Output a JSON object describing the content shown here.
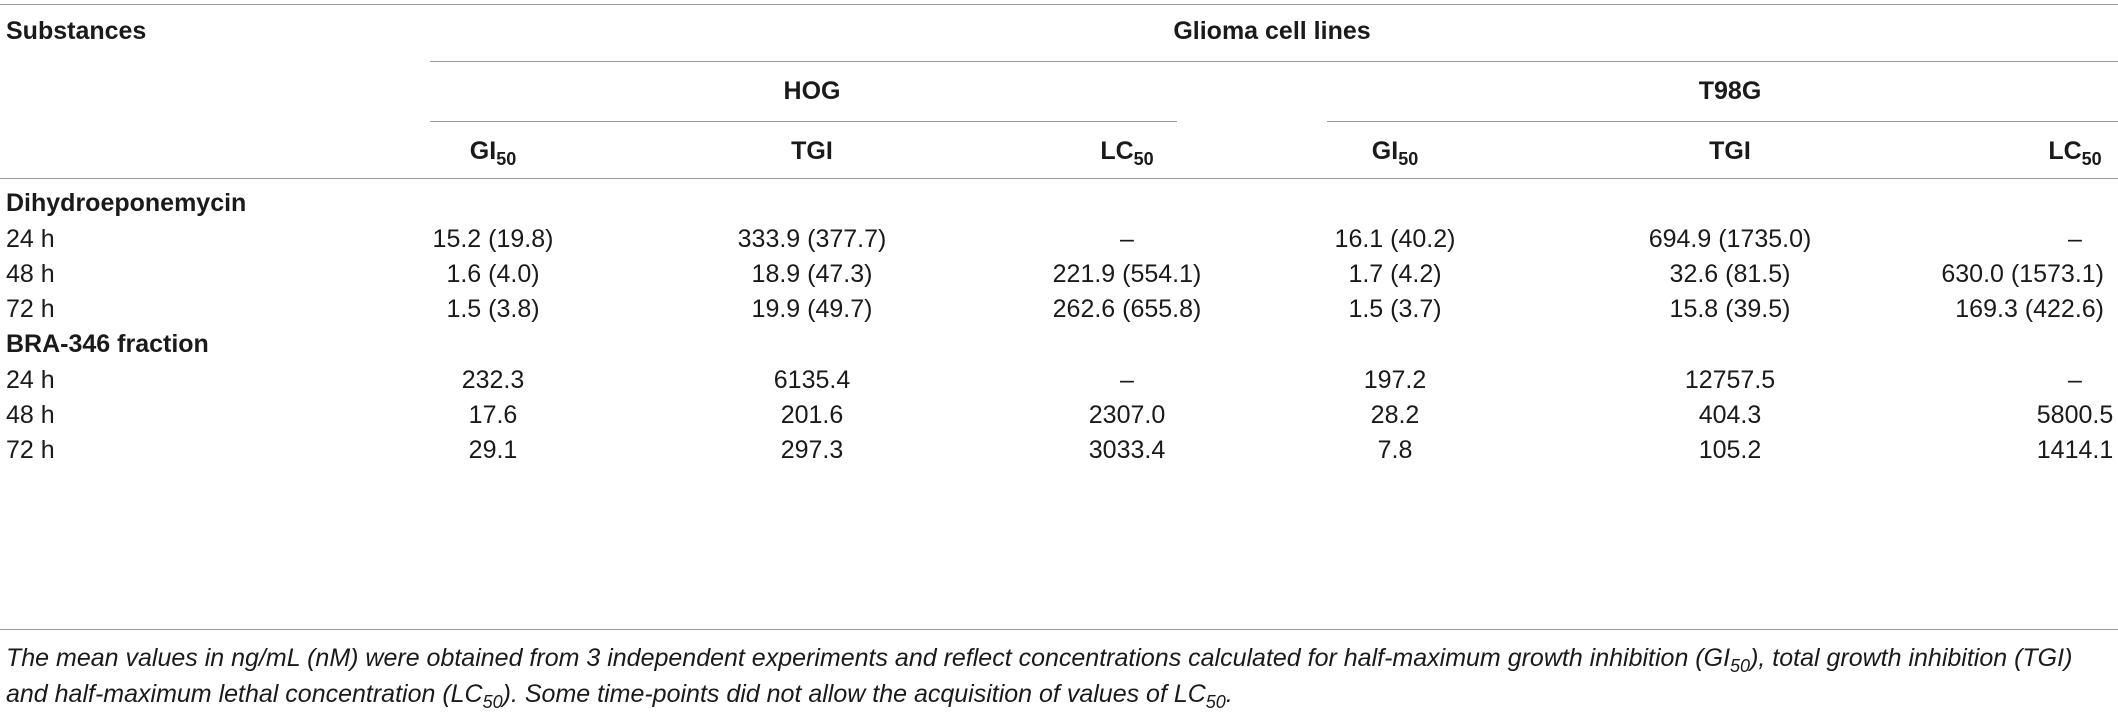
{
  "header": {
    "substances": "Substances",
    "group": "Glioma cell lines",
    "lines": [
      "HOG",
      "T98G"
    ],
    "metric_base": [
      "GI",
      "TGI",
      "LC",
      "GI",
      "TGI",
      "LC"
    ],
    "metric_sub": [
      "50",
      "",
      "50",
      "50",
      "",
      "50"
    ]
  },
  "sections": [
    {
      "title": "Dihydroeponemycin",
      "rows": [
        {
          "time": "24 h",
          "values": [
            "15.2 (19.8)",
            "333.9 (377.7)",
            "–",
            "16.1 (40.2)",
            "694.9 (1735.0)",
            "–"
          ]
        },
        {
          "time": "48 h",
          "values": [
            "1.6 (4.0)",
            "18.9 (47.3)",
            "221.9 (554.1)",
            "1.7 (4.2)",
            "32.6 (81.5)",
            "630.0 (1573.1)"
          ]
        },
        {
          "time": "72 h",
          "values": [
            "1.5 (3.8)",
            "19.9 (49.7)",
            "262.6 (655.8)",
            "1.5 (3.7)",
            "15.8 (39.5)",
            "169.3 (422.6)"
          ]
        }
      ]
    },
    {
      "title": "BRA-346 fraction",
      "rows": [
        {
          "time": "24 h",
          "values": [
            "232.3",
            "6135.4",
            "–",
            "197.2",
            "12757.5",
            "–"
          ]
        },
        {
          "time": "48 h",
          "values": [
            "17.6",
            "201.6",
            "2307.0",
            "28.2",
            "404.3",
            "5800.5"
          ]
        },
        {
          "time": "72 h",
          "values": [
            "29.1",
            "297.3",
            "3033.4",
            "7.8",
            "105.2",
            "1414.1"
          ]
        }
      ]
    }
  ],
  "footnote": {
    "t1": "The mean values in ng/mL (nM) were obtained from 3 independent experiments and reflect concentrations calculated for half-maximum growth inhibition (GI",
    "s1": "50",
    "t2": "), total growth inhibition (TGI) and half-maximum lethal concentration (LC",
    "s2": "50",
    "t3": "). Some time-points did not allow the acquisition of values of LC",
    "s3": "50",
    "t4": "."
  }
}
